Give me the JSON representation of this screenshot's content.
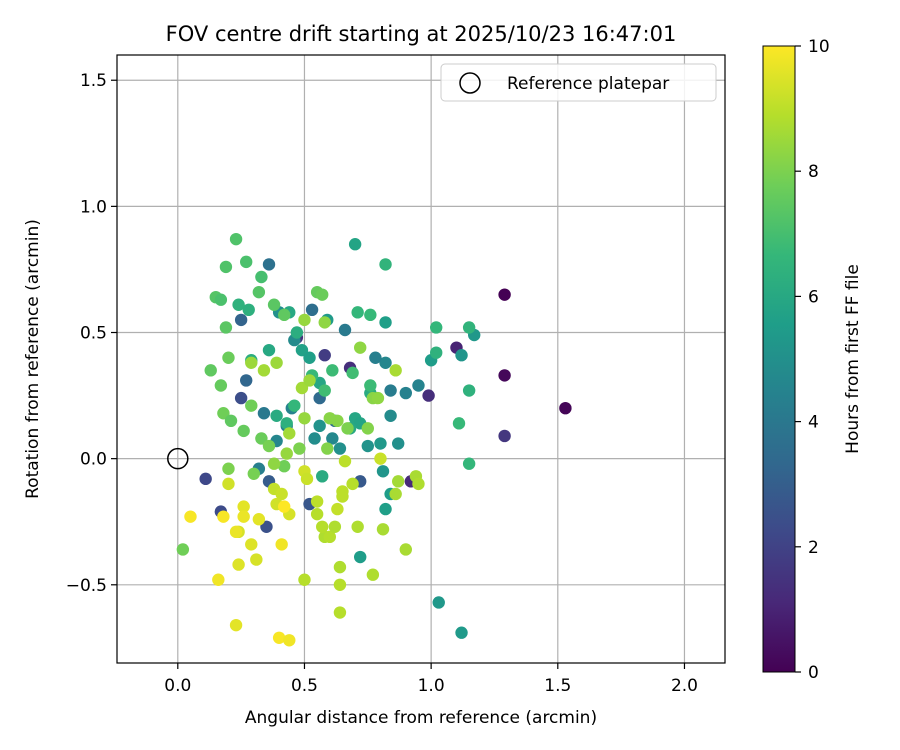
{
  "chart_data": {
    "type": "scatter",
    "title": "FOV centre drift starting at 2025/10/23 16:47:01",
    "xlabel": "Angular distance from reference (arcmin)",
    "ylabel": "Rotation from reference (arcmin)",
    "xlim": [
      -0.24,
      2.16
    ],
    "ylim": [
      -0.81,
      1.6
    ],
    "xticks": [
      0.0,
      0.5,
      1.0,
      1.5,
      2.0
    ],
    "xtick_labels": [
      "0.0",
      "0.5",
      "1.0",
      "1.5",
      "2.0"
    ],
    "yticks": [
      -0.5,
      0.0,
      0.5,
      1.0,
      1.5
    ],
    "ytick_labels": [
      "−0.5",
      "0.0",
      "0.5",
      "1.0",
      "1.5"
    ],
    "grid": true,
    "legend": {
      "position": "upper right",
      "entries": [
        {
          "label": "Reference platepar",
          "marker": "open-circle"
        }
      ]
    },
    "reference_point": {
      "x": 0.0,
      "y": 0.0
    },
    "colorbar": {
      "label": "Hours from first FF file",
      "range": [
        0,
        10
      ],
      "ticks": [
        0,
        2,
        4,
        6,
        8,
        10
      ],
      "colormap": [
        "#440154",
        "#482878",
        "#3e4989",
        "#31688e",
        "#26828e",
        "#1f9e89",
        "#35b779",
        "#6ece58",
        "#b5de2b",
        "#fde725"
      ]
    },
    "points": [
      {
        "x": 1.29,
        "y": 0.65,
        "t": 0.0
      },
      {
        "x": 1.53,
        "y": 0.2,
        "t": 0.1
      },
      {
        "x": 1.29,
        "y": 0.33,
        "t": 0.2
      },
      {
        "x": 1.1,
        "y": 0.44,
        "t": 1.0
      },
      {
        "x": 1.29,
        "y": 0.09,
        "t": 1.6
      },
      {
        "x": 0.99,
        "y": 0.25,
        "t": 1.3
      },
      {
        "x": 0.92,
        "y": -0.09,
        "t": 1.2
      },
      {
        "x": 0.68,
        "y": 0.36,
        "t": 1.3
      },
      {
        "x": 0.47,
        "y": 0.48,
        "t": 1.4
      },
      {
        "x": 0.58,
        "y": 0.41,
        "t": 1.8
      },
      {
        "x": 0.11,
        "y": -0.08,
        "t": 2.2
      },
      {
        "x": 0.17,
        "y": -0.21,
        "t": 2.3
      },
      {
        "x": 0.25,
        "y": 0.24,
        "t": 2.4
      },
      {
        "x": 0.35,
        "y": -0.27,
        "t": 2.5
      },
      {
        "x": 0.52,
        "y": -0.18,
        "t": 2.7
      },
      {
        "x": 0.36,
        "y": -0.09,
        "t": 2.9
      },
      {
        "x": 0.72,
        "y": -0.09,
        "t": 2.8
      },
      {
        "x": 0.25,
        "y": 0.55,
        "t": 3.2
      },
      {
        "x": 0.27,
        "y": 0.31,
        "t": 3.3
      },
      {
        "x": 0.56,
        "y": 0.24,
        "t": 3.4
      },
      {
        "x": 0.62,
        "y": 0.15,
        "t": 3.5
      },
      {
        "x": 0.36,
        "y": 0.77,
        "t": 3.7
      },
      {
        "x": 0.53,
        "y": 0.59,
        "t": 3.6
      },
      {
        "x": 0.66,
        "y": 0.51,
        "t": 4.1
      },
      {
        "x": 0.84,
        "y": 0.27,
        "t": 4.2
      },
      {
        "x": 0.95,
        "y": 0.29,
        "t": 4.5
      },
      {
        "x": 0.9,
        "y": 0.26,
        "t": 4.4
      },
      {
        "x": 0.82,
        "y": 0.38,
        "t": 4.6
      },
      {
        "x": 0.84,
        "y": 0.17,
        "t": 4.8
      },
      {
        "x": 0.78,
        "y": 0.4,
        "t": 4.3
      },
      {
        "x": 0.61,
        "y": 0.08,
        "t": 4.7
      },
      {
        "x": 0.54,
        "y": 0.08,
        "t": 4.9
      },
      {
        "x": 0.45,
        "y": 0.2,
        "t": 4.5
      },
      {
        "x": 0.43,
        "y": 0.13,
        "t": 4.2
      },
      {
        "x": 0.39,
        "y": 0.07,
        "t": 4.6
      },
      {
        "x": 0.34,
        "y": 0.18,
        "t": 4.0
      },
      {
        "x": 0.32,
        "y": -0.04,
        "t": 4.3
      },
      {
        "x": 0.46,
        "y": 0.47,
        "t": 4.8
      },
      {
        "x": 0.4,
        "y": 0.58,
        "t": 5.0
      },
      {
        "x": 0.56,
        "y": 0.13,
        "t": 5.1
      },
      {
        "x": 0.64,
        "y": 0.04,
        "t": 5.0
      },
      {
        "x": 0.75,
        "y": 0.05,
        "t": 5.1
      },
      {
        "x": 0.8,
        "y": 0.06,
        "t": 5.3
      },
      {
        "x": 0.87,
        "y": 0.06,
        "t": 5.0
      },
      {
        "x": 0.81,
        "y": -0.05,
        "t": 5.2
      },
      {
        "x": 1.12,
        "y": 0.41,
        "t": 5.2
      },
      {
        "x": 1.17,
        "y": 0.49,
        "t": 5.3
      },
      {
        "x": 1.0,
        "y": 0.39,
        "t": 5.5
      },
      {
        "x": 1.03,
        "y": -0.57,
        "t": 5.3
      },
      {
        "x": 1.12,
        "y": -0.69,
        "t": 5.4
      },
      {
        "x": 0.72,
        "y": -0.39,
        "t": 5.5
      },
      {
        "x": 0.82,
        "y": -0.2,
        "t": 5.6
      },
      {
        "x": 0.84,
        "y": -0.14,
        "t": 5.5
      },
      {
        "x": 0.7,
        "y": 0.85,
        "t": 5.8
      },
      {
        "x": 0.82,
        "y": 0.54,
        "t": 5.6
      },
      {
        "x": 0.59,
        "y": 0.55,
        "t": 5.4
      },
      {
        "x": 0.56,
        "y": 0.3,
        "t": 5.9
      },
      {
        "x": 0.49,
        "y": 0.43,
        "t": 5.7
      },
      {
        "x": 0.52,
        "y": 0.4,
        "t": 5.6
      },
      {
        "x": 0.7,
        "y": 0.16,
        "t": 5.9
      },
      {
        "x": 0.72,
        "y": 0.14,
        "t": 5.8
      },
      {
        "x": 0.68,
        "y": 0.12,
        "t": 6.0
      },
      {
        "x": 0.76,
        "y": 0.26,
        "t": 6.1
      },
      {
        "x": 0.57,
        "y": -0.07,
        "t": 6.1
      },
      {
        "x": 0.44,
        "y": 0.58,
        "t": 6.0
      },
      {
        "x": 0.47,
        "y": 0.5,
        "t": 6.2
      },
      {
        "x": 0.43,
        "y": 0.14,
        "t": 6.3
      },
      {
        "x": 0.39,
        "y": 0.17,
        "t": 6.1
      },
      {
        "x": 0.36,
        "y": 0.43,
        "t": 6.0
      },
      {
        "x": 0.29,
        "y": 0.39,
        "t": 6.2
      },
      {
        "x": 0.24,
        "y": 0.61,
        "t": 6.4
      },
      {
        "x": 0.28,
        "y": 0.59,
        "t": 6.3
      },
      {
        "x": 1.15,
        "y": 0.52,
        "t": 6.5
      },
      {
        "x": 1.02,
        "y": 0.42,
        "t": 6.4
      },
      {
        "x": 1.02,
        "y": 0.52,
        "t": 6.6
      },
      {
        "x": 1.15,
        "y": 0.27,
        "t": 6.4
      },
      {
        "x": 1.11,
        "y": 0.14,
        "t": 6.7
      },
      {
        "x": 1.15,
        "y": -0.02,
        "t": 6.6
      },
      {
        "x": 0.82,
        "y": 0.77,
        "t": 6.5
      },
      {
        "x": 0.76,
        "y": 0.57,
        "t": 6.7
      },
      {
        "x": 0.71,
        "y": 0.58,
        "t": 6.6
      },
      {
        "x": 0.61,
        "y": 0.35,
        "t": 6.8
      },
      {
        "x": 0.69,
        "y": 0.34,
        "t": 6.9
      },
      {
        "x": 0.76,
        "y": 0.29,
        "t": 6.8
      },
      {
        "x": 0.53,
        "y": 0.33,
        "t": 6.7
      },
      {
        "x": 0.58,
        "y": 0.27,
        "t": 6.9
      },
      {
        "x": 0.46,
        "y": 0.21,
        "t": 6.6
      },
      {
        "x": 0.33,
        "y": 0.72,
        "t": 7.0
      },
      {
        "x": 0.27,
        "y": 0.78,
        "t": 7.1
      },
      {
        "x": 0.23,
        "y": 0.87,
        "t": 7.2
      },
      {
        "x": 0.15,
        "y": 0.64,
        "t": 7.3
      },
      {
        "x": 0.17,
        "y": 0.63,
        "t": 7.1
      },
      {
        "x": 0.19,
        "y": 0.76,
        "t": 7.2
      },
      {
        "x": 0.32,
        "y": 0.66,
        "t": 7.3
      },
      {
        "x": 0.38,
        "y": 0.61,
        "t": 7.4
      },
      {
        "x": 0.42,
        "y": 0.57,
        "t": 7.5
      },
      {
        "x": 0.55,
        "y": 0.66,
        "t": 7.6
      },
      {
        "x": 0.57,
        "y": 0.65,
        "t": 7.7
      },
      {
        "x": 0.19,
        "y": 0.52,
        "t": 7.4
      },
      {
        "x": 0.13,
        "y": 0.35,
        "t": 7.5
      },
      {
        "x": 0.17,
        "y": 0.29,
        "t": 7.6
      },
      {
        "x": 0.2,
        "y": 0.4,
        "t": 7.7
      },
      {
        "x": 0.18,
        "y": 0.18,
        "t": 7.8
      },
      {
        "x": 0.21,
        "y": 0.15,
        "t": 7.5
      },
      {
        "x": 0.26,
        "y": 0.11,
        "t": 7.6
      },
      {
        "x": 0.29,
        "y": 0.21,
        "t": 7.8
      },
      {
        "x": 0.33,
        "y": 0.08,
        "t": 7.7
      },
      {
        "x": 0.36,
        "y": 0.05,
        "t": 7.9
      },
      {
        "x": 0.02,
        "y": -0.36,
        "t": 7.8
      },
      {
        "x": 0.2,
        "y": -0.04,
        "t": 8.0
      },
      {
        "x": 0.3,
        "y": -0.06,
        "t": 7.9
      },
      {
        "x": 0.42,
        "y": -0.03,
        "t": 7.8
      },
      {
        "x": 0.48,
        "y": 0.04,
        "t": 8.0
      },
      {
        "x": 0.59,
        "y": 0.04,
        "t": 8.1
      },
      {
        "x": 0.63,
        "y": 0.15,
        "t": 8.2
      },
      {
        "x": 0.67,
        "y": 0.12,
        "t": 8.0
      },
      {
        "x": 0.75,
        "y": 0.12,
        "t": 8.1
      },
      {
        "x": 0.72,
        "y": 0.44,
        "t": 8.3
      },
      {
        "x": 0.77,
        "y": 0.24,
        "t": 8.2
      },
      {
        "x": 0.79,
        "y": 0.24,
        "t": 8.3
      },
      {
        "x": 0.58,
        "y": 0.54,
        "t": 8.3
      },
      {
        "x": 0.5,
        "y": 0.55,
        "t": 8.4
      },
      {
        "x": 0.6,
        "y": 0.16,
        "t": 8.2
      },
      {
        "x": 0.43,
        "y": 0.02,
        "t": 8.4
      },
      {
        "x": 0.38,
        "y": -0.02,
        "t": 8.3
      },
      {
        "x": 0.29,
        "y": 0.38,
        "t": 8.5
      },
      {
        "x": 0.39,
        "y": 0.38,
        "t": 8.5
      },
      {
        "x": 0.5,
        "y": 0.16,
        "t": 8.4
      },
      {
        "x": 0.49,
        "y": 0.28,
        "t": 8.6
      },
      {
        "x": 0.52,
        "y": 0.31,
        "t": 8.5
      },
      {
        "x": 0.44,
        "y": 0.1,
        "t": 8.6
      },
      {
        "x": 0.34,
        "y": 0.35,
        "t": 8.6
      },
      {
        "x": 0.86,
        "y": 0.35,
        "t": 8.7
      },
      {
        "x": 0.87,
        "y": -0.09,
        "t": 8.6
      },
      {
        "x": 0.9,
        "y": -0.36,
        "t": 8.7
      },
      {
        "x": 0.94,
        "y": -0.07,
        "t": 8.7
      },
      {
        "x": 0.95,
        "y": -0.1,
        "t": 8.8
      },
      {
        "x": 0.86,
        "y": -0.14,
        "t": 8.7
      },
      {
        "x": 0.77,
        "y": -0.46,
        "t": 8.8
      },
      {
        "x": 0.71,
        "y": -0.27,
        "t": 8.8
      },
      {
        "x": 0.81,
        "y": -0.28,
        "t": 8.7
      },
      {
        "x": 0.64,
        "y": -0.43,
        "t": 8.8
      },
      {
        "x": 0.64,
        "y": -0.5,
        "t": 8.9
      },
      {
        "x": 0.64,
        "y": -0.61,
        "t": 8.9
      },
      {
        "x": 0.5,
        "y": -0.48,
        "t": 8.9
      },
      {
        "x": 0.58,
        "y": -0.31,
        "t": 8.8
      },
      {
        "x": 0.6,
        "y": -0.31,
        "t": 8.9
      },
      {
        "x": 0.55,
        "y": -0.22,
        "t": 8.9
      },
      {
        "x": 0.57,
        "y": -0.27,
        "t": 8.9
      },
      {
        "x": 0.62,
        "y": -0.27,
        "t": 8.8
      },
      {
        "x": 0.65,
        "y": -0.15,
        "t": 9.0
      },
      {
        "x": 0.69,
        "y": -0.1,
        "t": 8.9
      },
      {
        "x": 0.65,
        "y": -0.13,
        "t": 9.0
      },
      {
        "x": 0.55,
        "y": -0.17,
        "t": 9.0
      },
      {
        "x": 0.63,
        "y": -0.2,
        "t": 9.1
      },
      {
        "x": 0.66,
        "y": -0.01,
        "t": 9.0
      },
      {
        "x": 0.8,
        "y": 0.0,
        "t": 9.2
      },
      {
        "x": 0.38,
        "y": -0.12,
        "t": 9.1
      },
      {
        "x": 0.41,
        "y": -0.14,
        "t": 9.2
      },
      {
        "x": 0.39,
        "y": -0.18,
        "t": 9.3
      },
      {
        "x": 0.44,
        "y": -0.22,
        "t": 9.4
      },
      {
        "x": 0.5,
        "y": -0.05,
        "t": 9.3
      },
      {
        "x": 0.51,
        "y": -0.08,
        "t": 9.2
      },
      {
        "x": 0.31,
        "y": -0.4,
        "t": 9.4
      },
      {
        "x": 0.29,
        "y": -0.34,
        "t": 9.5
      },
      {
        "x": 0.24,
        "y": -0.29,
        "t": 9.4
      },
      {
        "x": 0.24,
        "y": -0.42,
        "t": 9.5
      },
      {
        "x": 0.2,
        "y": -0.1,
        "t": 9.3
      },
      {
        "x": 0.32,
        "y": -0.24,
        "t": 9.6
      },
      {
        "x": 0.26,
        "y": -0.19,
        "t": 9.6
      },
      {
        "x": 0.26,
        "y": -0.23,
        "t": 9.7
      },
      {
        "x": 0.23,
        "y": -0.29,
        "t": 9.7
      },
      {
        "x": 0.16,
        "y": -0.48,
        "t": 9.8
      },
      {
        "x": 0.23,
        "y": -0.66,
        "t": 9.6
      },
      {
        "x": 0.41,
        "y": -0.34,
        "t": 9.8
      },
      {
        "x": 0.4,
        "y": -0.71,
        "t": 9.9
      },
      {
        "x": 0.44,
        "y": -0.72,
        "t": 9.8
      },
      {
        "x": 0.05,
        "y": -0.23,
        "t": 9.9
      },
      {
        "x": 0.18,
        "y": -0.23,
        "t": 9.9
      },
      {
        "x": 0.42,
        "y": -0.19,
        "t": 10.0
      }
    ]
  }
}
